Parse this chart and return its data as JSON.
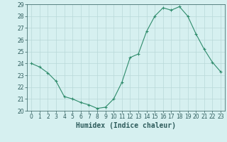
{
  "x": [
    0,
    1,
    2,
    3,
    4,
    5,
    6,
    7,
    8,
    9,
    10,
    11,
    12,
    13,
    14,
    15,
    16,
    17,
    18,
    19,
    20,
    21,
    22,
    23
  ],
  "y": [
    24.0,
    23.7,
    23.2,
    22.5,
    21.2,
    21.0,
    20.7,
    20.5,
    20.2,
    20.3,
    21.0,
    22.4,
    24.5,
    24.8,
    26.7,
    28.0,
    28.7,
    28.5,
    28.8,
    28.0,
    26.5,
    25.2,
    24.1,
    23.3
  ],
  "line_color": "#2e8b6b",
  "marker": "+",
  "marker_color": "#2e8b6b",
  "bg_color": "#d6f0f0",
  "grid_color": "#b8d8d8",
  "xlabel": "Humidex (Indice chaleur)",
  "ylabel": "",
  "xlim": [
    -0.5,
    23.5
  ],
  "ylim": [
    20,
    29
  ],
  "yticks": [
    20,
    21,
    22,
    23,
    24,
    25,
    26,
    27,
    28,
    29
  ],
  "xticks": [
    0,
    1,
    2,
    3,
    4,
    5,
    6,
    7,
    8,
    9,
    10,
    11,
    12,
    13,
    14,
    15,
    16,
    17,
    18,
    19,
    20,
    21,
    22,
    23
  ],
  "tick_color": "#2e5c5c",
  "label_fontsize": 6.0,
  "tick_fontsize": 5.5,
  "xlabel_fontsize": 7.0
}
